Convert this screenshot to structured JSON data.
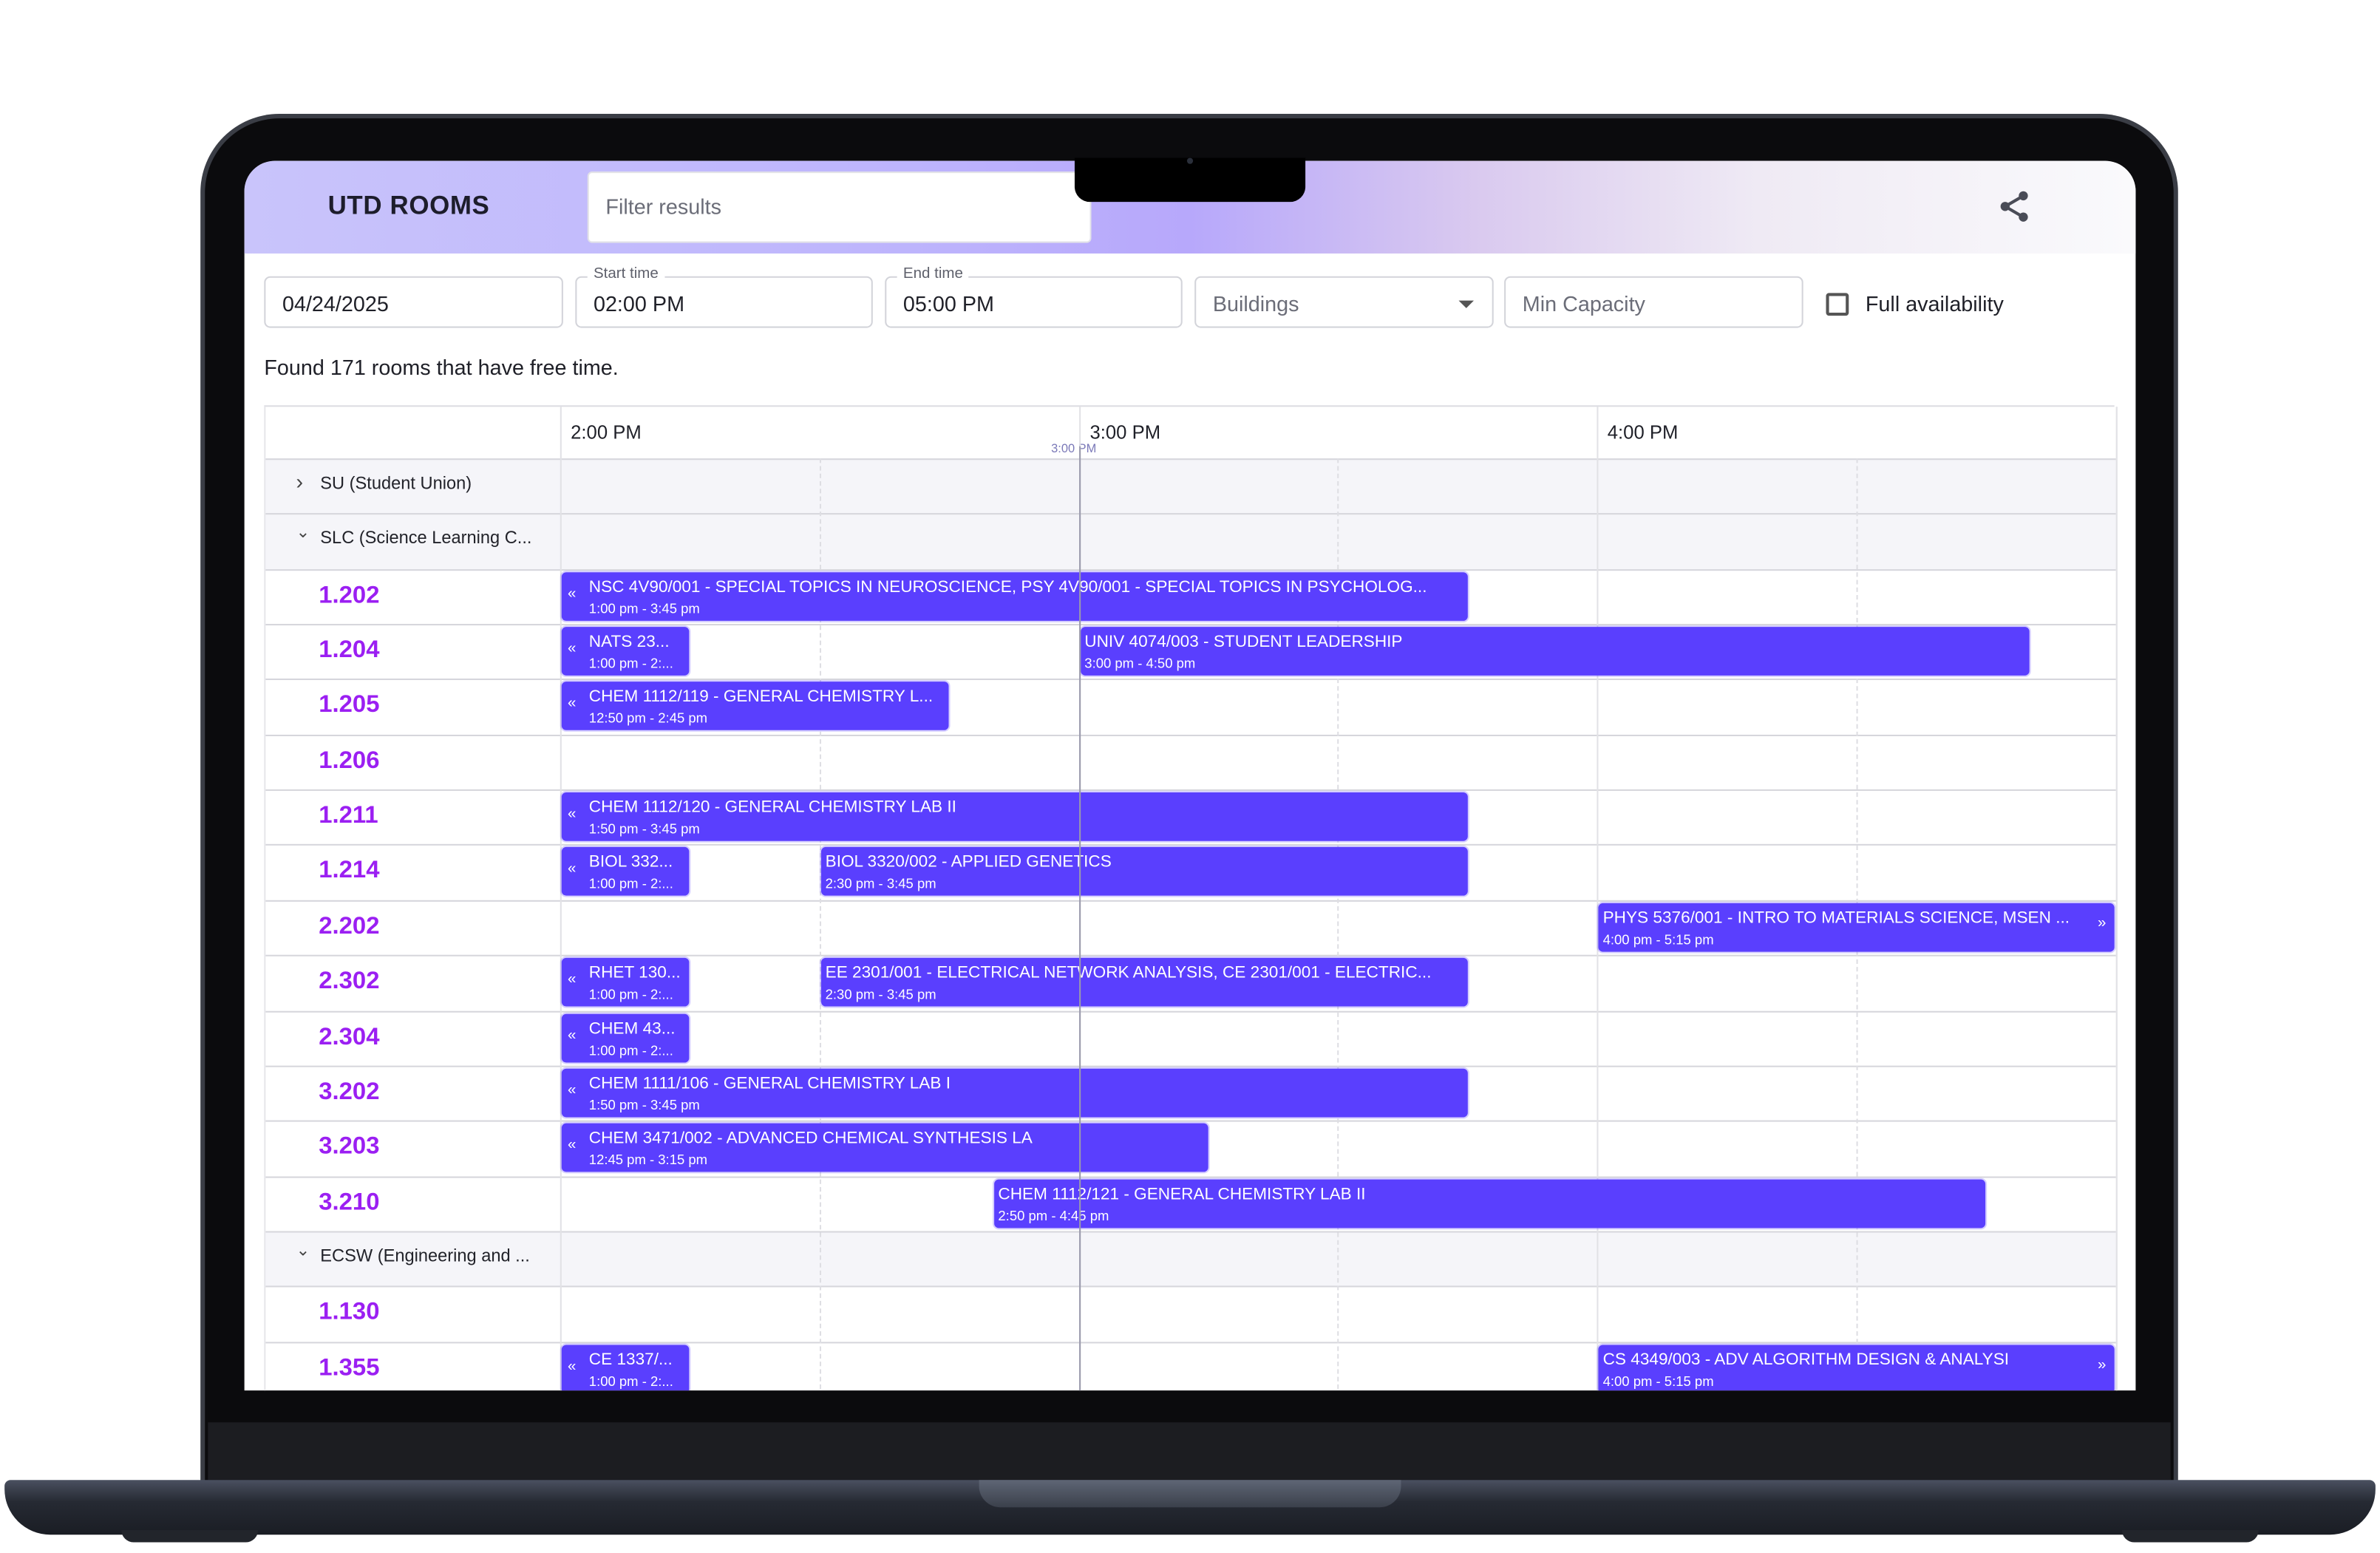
{
  "app": {
    "title": "UTD ROOMS",
    "accent": "#5a3ffe",
    "room_color": "#9b1ff2"
  },
  "search": {
    "placeholder": "Filter results",
    "value": ""
  },
  "share": {
    "icon": "share-icon"
  },
  "filters": {
    "date": "04/24/2025",
    "start_label": "Start time",
    "start": "02:00 PM",
    "end_label": "End time",
    "end": "05:00 PM",
    "buildings_placeholder": "Buildings",
    "capacity_placeholder": "Min Capacity",
    "full_availability_label": "Full availability",
    "full_availability_checked": false
  },
  "summary": "Found 171 rooms that have free time.",
  "timeline": {
    "ticks": [
      "2:00 PM",
      "3:00 PM",
      "4:00 PM"
    ],
    "range_start": "14:00",
    "range_end": "17:00",
    "now_label": "3:00 PM",
    "now": "15:00"
  },
  "rows": [
    {
      "type": "group",
      "label": "SU (Student Union)",
      "expanded": false
    },
    {
      "type": "group",
      "label": "SLC (Science Learning C...",
      "expanded": true
    },
    {
      "type": "room",
      "label": "1.202",
      "events": [
        {
          "title": "NSC 4V90/001 - SPECIAL TOPICS IN NEUROSCIENCE, PSY 4V90/001 - SPECIAL TOPICS IN PSYCHOLOG...",
          "time": "1:00 pm - 3:45 pm",
          "start": "13:00",
          "end": "15:45"
        }
      ]
    },
    {
      "type": "room",
      "label": "1.204",
      "events": [
        {
          "title": "NATS 23...",
          "time": "1:00 pm - 2:...",
          "start": "13:00",
          "end": "14:15"
        },
        {
          "title": "UNIV 4074/003 - STUDENT LEADERSHIP",
          "time": "3:00 pm - 4:50 pm",
          "start": "15:00",
          "end": "16:50"
        }
      ]
    },
    {
      "type": "room",
      "label": "1.205",
      "events": [
        {
          "title": "CHEM 1112/119 - GENERAL CHEMISTRY L...",
          "time": "12:50 pm - 2:45 pm",
          "start": "12:50",
          "end": "14:45"
        }
      ]
    },
    {
      "type": "room",
      "label": "1.206",
      "events": []
    },
    {
      "type": "room",
      "label": "1.211",
      "events": [
        {
          "title": "CHEM 1112/120 - GENERAL CHEMISTRY LAB II",
          "time": "1:50 pm - 3:45 pm",
          "start": "13:50",
          "end": "15:45"
        }
      ]
    },
    {
      "type": "room",
      "label": "1.214",
      "events": [
        {
          "title": "BIOL 332...",
          "time": "1:00 pm - 2:...",
          "start": "13:00",
          "end": "14:15"
        },
        {
          "title": "BIOL 3320/002 - APPLIED GENETICS",
          "time": "2:30 pm - 3:45 pm",
          "start": "14:30",
          "end": "15:45"
        }
      ]
    },
    {
      "type": "room",
      "label": "2.202",
      "events": [
        {
          "title": "PHYS 5376/001 - INTRO TO MATERIALS SCIENCE, MSEN ...",
          "time": "4:00 pm - 5:15 pm",
          "start": "16:00",
          "end": "17:15"
        }
      ]
    },
    {
      "type": "room",
      "label": "2.302",
      "events": [
        {
          "title": "RHET 130...",
          "time": "1:00 pm - 2:...",
          "start": "13:00",
          "end": "14:15"
        },
        {
          "title": "EE 2301/001 - ELECTRICAL NETWORK ANALYSIS, CE 2301/001 - ELECTRIC...",
          "time": "2:30 pm - 3:45 pm",
          "start": "14:30",
          "end": "15:45"
        }
      ]
    },
    {
      "type": "room",
      "label": "2.304",
      "events": [
        {
          "title": "CHEM 43...",
          "time": "1:00 pm - 2:...",
          "start": "13:00",
          "end": "14:15"
        }
      ]
    },
    {
      "type": "room",
      "label": "3.202",
      "events": [
        {
          "title": "CHEM 1111/106 - GENERAL CHEMISTRY LAB I",
          "time": "1:50 pm - 3:45 pm",
          "start": "13:50",
          "end": "15:45"
        }
      ]
    },
    {
      "type": "room",
      "label": "3.203",
      "events": [
        {
          "title": "CHEM 3471/002 - ADVANCED CHEMICAL SYNTHESIS LA",
          "time": "12:45 pm - 3:15 pm",
          "start": "12:45",
          "end": "15:15"
        }
      ]
    },
    {
      "type": "room",
      "label": "3.210",
      "events": [
        {
          "title": "CHEM 1112/121 - GENERAL CHEMISTRY LAB II",
          "time": "2:50 pm - 4:45 pm",
          "start": "14:50",
          "end": "16:45"
        }
      ]
    },
    {
      "type": "group",
      "label": "ECSW (Engineering and ...",
      "expanded": true
    },
    {
      "type": "room",
      "label": "1.130",
      "events": []
    },
    {
      "type": "room",
      "label": "1.355",
      "events": [
        {
          "title": "CE 1337/...",
          "time": "1:00 pm - 2:...",
          "start": "13:00",
          "end": "14:15"
        },
        {
          "title": "CS 4349/003 - ADV ALGORITHM DESIGN & ANALYSI",
          "time": "4:00 pm - 5:15 pm",
          "start": "16:00",
          "end": "17:15"
        }
      ]
    }
  ]
}
